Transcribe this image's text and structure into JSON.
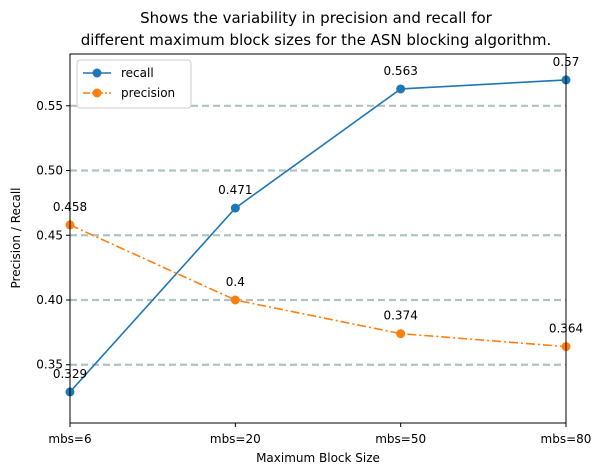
{
  "chart_data": {
    "type": "line",
    "title_line1": "Shows the variability in precision and recall for",
    "title_line2": "different maximum block sizes for the ASN blocking algorithm.",
    "xlabel": "Maximum Block Size",
    "ylabel": "Precision / Recall",
    "categories": [
      "mbs=6",
      "mbs=20",
      "mbs=50",
      "mbs=80"
    ],
    "ylim": [
      0.305,
      0.59
    ],
    "yticks": [
      0.35,
      0.4,
      0.45,
      0.5,
      0.55
    ],
    "ytick_labels": [
      "0.35",
      "0.40",
      "0.45",
      "0.50",
      "0.55"
    ],
    "grid": "horizontal dashed",
    "legend_position": "top-left",
    "series": [
      {
        "name": "recall",
        "values": [
          0.329,
          0.471,
          0.563,
          0.57
        ],
        "labels": [
          "0.329",
          "0.471",
          "0.563",
          "0.57"
        ],
        "color": "#1f77b4",
        "line_style": "solid"
      },
      {
        "name": "precision",
        "values": [
          0.458,
          0.4,
          0.374,
          0.364
        ],
        "labels": [
          "0.458",
          "0.4",
          "0.374",
          "0.364"
        ],
        "color": "#ff7f0e",
        "line_style": "dashdot"
      }
    ],
    "grid_color": "#b0c4c4"
  }
}
